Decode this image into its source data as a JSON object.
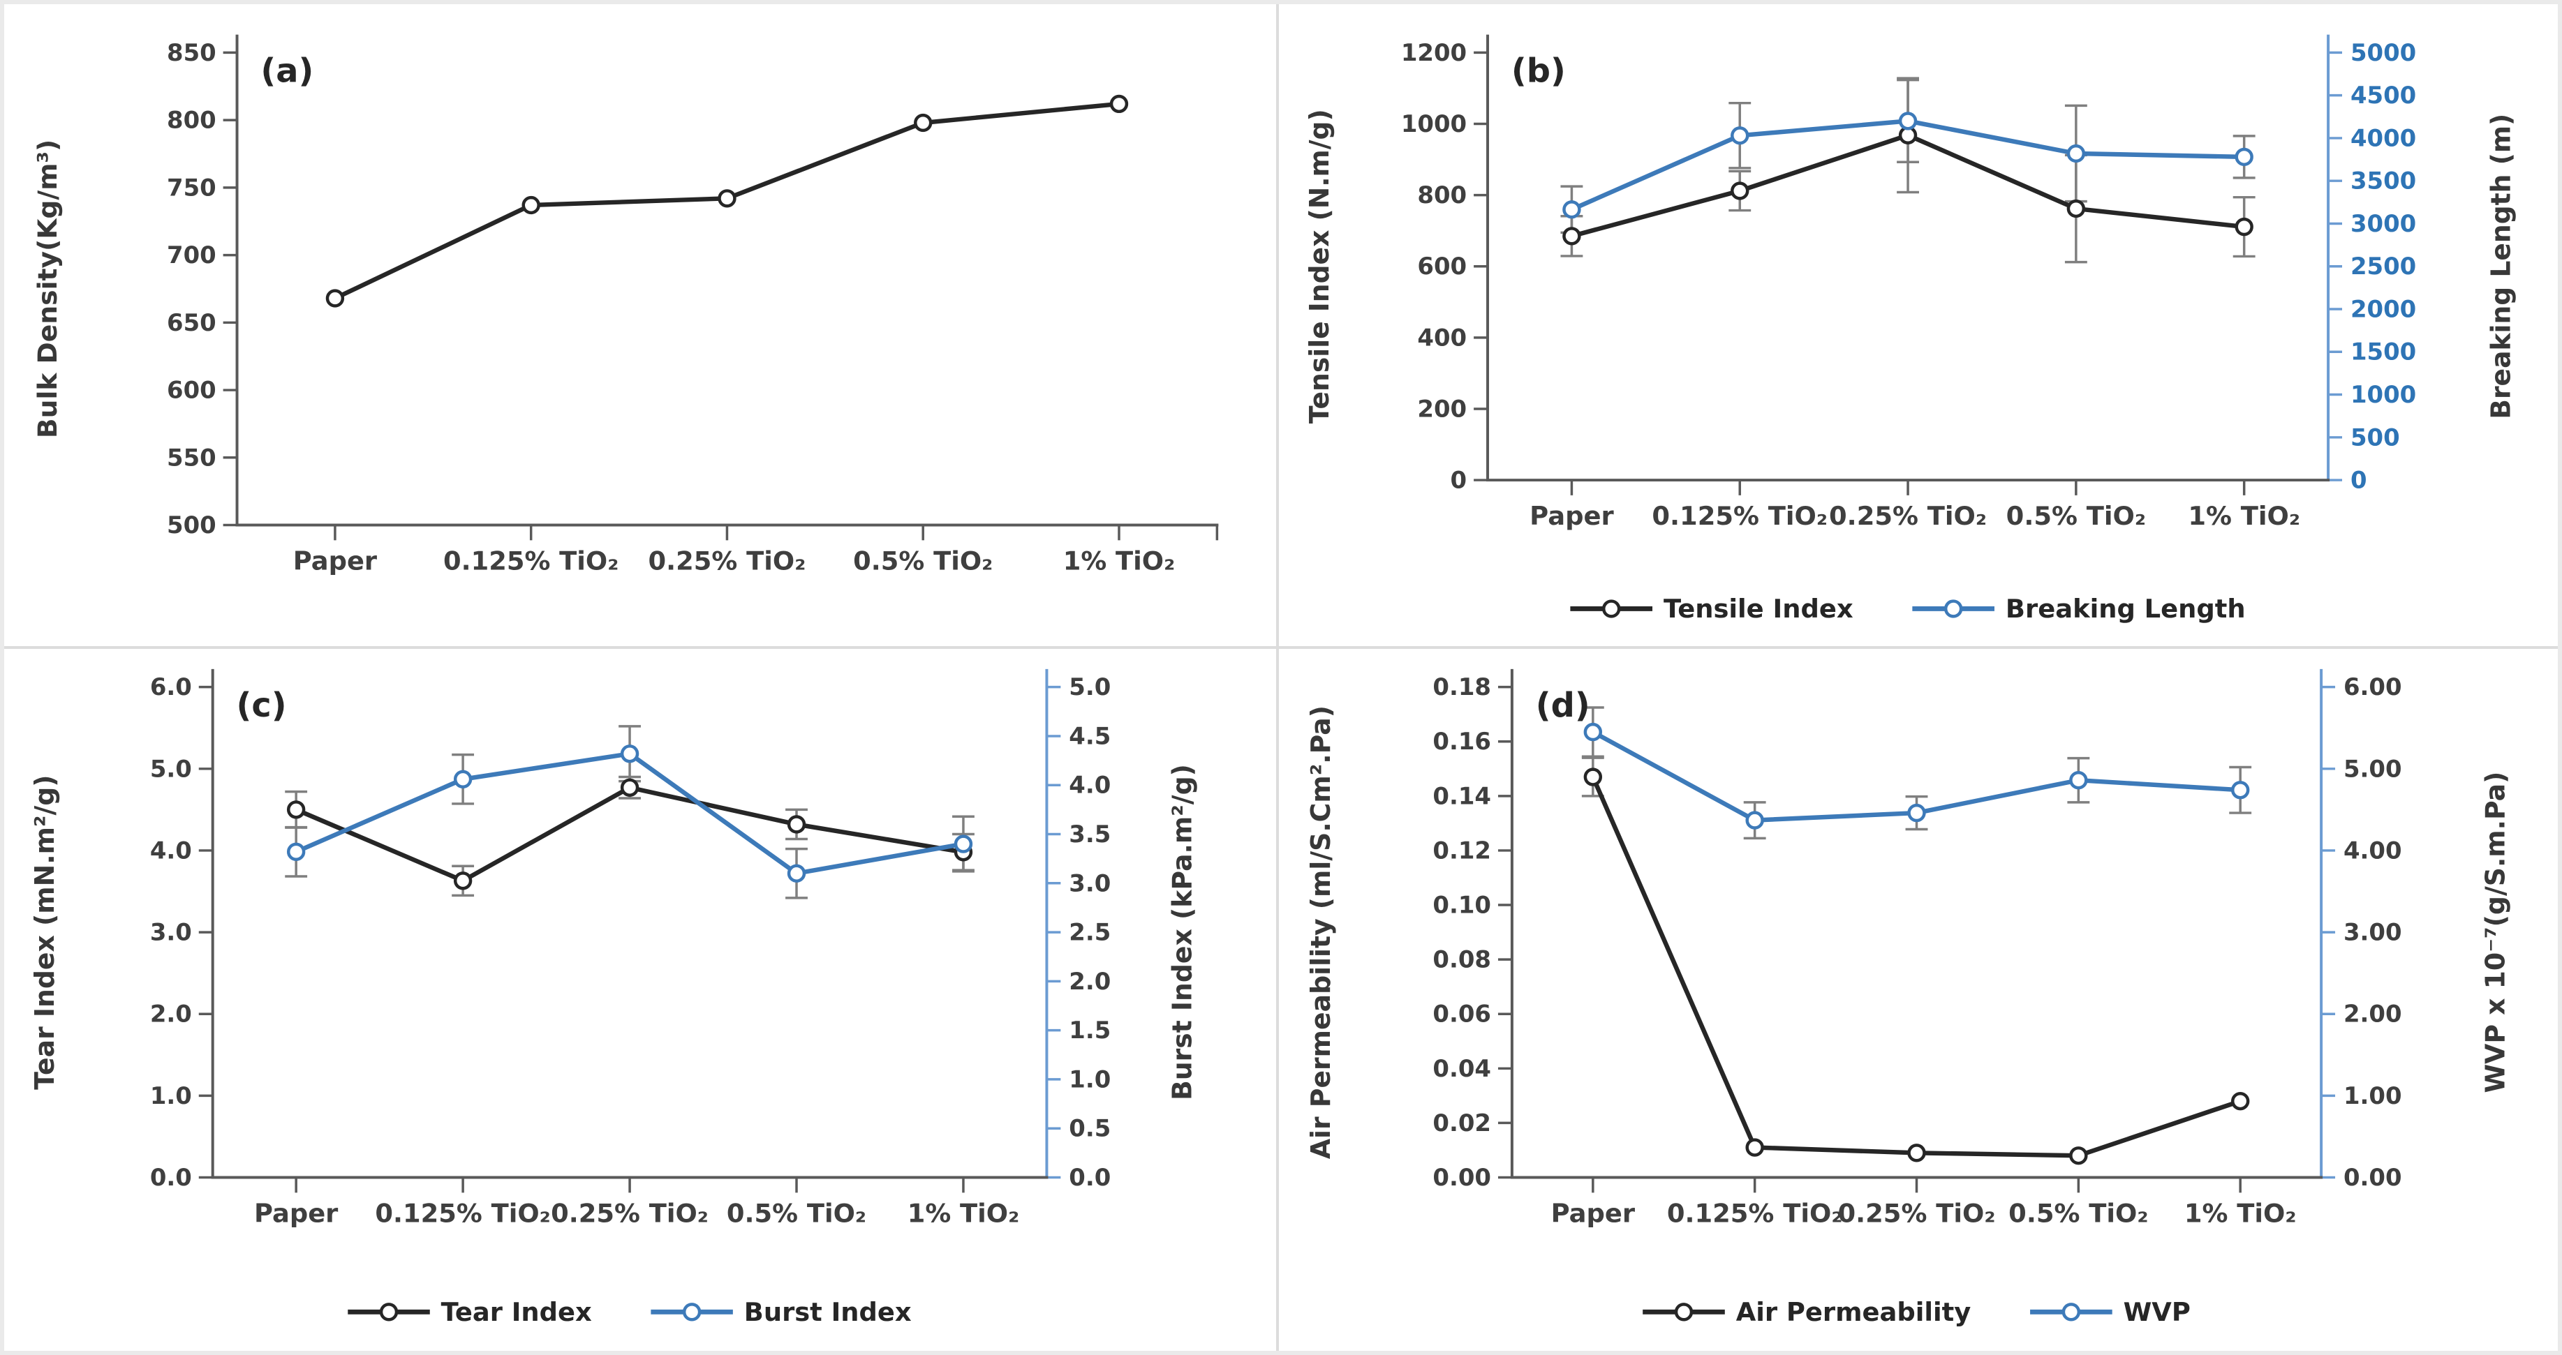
{
  "figure": {
    "type": "scientific-multi-panel-line-figure",
    "panel_letters": [
      "(a)",
      "(b)",
      "(c)",
      "(d)"
    ]
  },
  "colors": {
    "black_series": "#262626",
    "blue_series": "#3d7ab9",
    "blue_axis_line": "#6b9bd2",
    "blue_tick_label": "#2e74b5",
    "error_bar": "#7f7f7f",
    "axis_line": "#595959",
    "tick_label": "#3f3f3f",
    "axis_title": "#383838",
    "marker_fill": "#ffffff"
  },
  "chart_data": [
    {
      "id": "a",
      "type": "line",
      "panel_label": "(a)",
      "categories": [
        "Paper",
        "0.125% TiO₂",
        "0.25% TiO₂",
        "0.5% TiO₂",
        "1% TiO₂"
      ],
      "left_axis": {
        "label": "Bulk Density(Kg/m³)",
        "min": 500,
        "max": 850,
        "step": 50,
        "decimals": 0,
        "tick_label_color": "dark"
      },
      "right_axis": null,
      "legend": false,
      "series": [
        {
          "name": "Bulk Density",
          "legend_label": null,
          "axis": "left",
          "color": "black",
          "values": [
            668,
            737,
            742,
            798,
            812
          ],
          "errors": [
            0,
            0,
            0,
            0,
            0
          ]
        }
      ]
    },
    {
      "id": "b",
      "type": "line",
      "panel_label": "(b)",
      "categories": [
        "Paper",
        "0.125% TiO₂",
        "0.25% TiO₂",
        "0.5% TiO₂",
        "1% TiO₂"
      ],
      "left_axis": {
        "label": "Tensile Index (N.m/g)",
        "min": 0,
        "max": 1200,
        "step": 200,
        "decimals": 0,
        "tick_label_color": "dark"
      },
      "right_axis": {
        "label": "Breaking Length (m)",
        "min": 0,
        "max": 5000,
        "step": 500,
        "decimals": 0,
        "tick_label_color": "blue"
      },
      "legend": true,
      "series": [
        {
          "name": "Tensile Index",
          "legend_label": "Tensile Index",
          "axis": "left",
          "color": "black",
          "values": [
            685,
            812,
            968,
            762,
            711
          ],
          "errors": [
            56,
            55,
            160,
            150,
            83
          ]
        },
        {
          "name": "Breaking Length",
          "legend_label": "Breaking Length",
          "axis": "right",
          "color": "blue",
          "values": [
            3165,
            4030,
            4200,
            3820,
            3780
          ],
          "errors": [
            270,
            380,
            480,
            560,
            245
          ]
        }
      ]
    },
    {
      "id": "c",
      "type": "line",
      "panel_label": "(c)",
      "categories": [
        "Paper",
        "0.125% TiO₂",
        "0.25% TiO₂",
        "0.5% TiO₂",
        "1% TiO₂"
      ],
      "left_axis": {
        "label": "Tear Index (mN.m²/g)",
        "min": 0,
        "max": 6,
        "step": 1,
        "decimals": 1,
        "tick_label_color": "dark"
      },
      "right_axis": {
        "label": "Burst Index (kPa.m²/g)",
        "min": 0,
        "max": 5,
        "step": 0.5,
        "decimals": 1,
        "tick_label_color": "dark"
      },
      "legend": true,
      "series": [
        {
          "name": "Tear Index",
          "legend_label": "Tear Index",
          "axis": "left",
          "color": "black",
          "values": [
            4.5,
            3.63,
            4.77,
            4.32,
            3.98
          ],
          "errors": [
            0.22,
            0.18,
            0.13,
            0.18,
            0.22
          ]
        },
        {
          "name": "Burst Index",
          "legend_label": "Burst Index",
          "axis": "right",
          "color": "blue",
          "values": [
            3.32,
            4.06,
            4.32,
            3.1,
            3.4
          ],
          "errors": [
            0.25,
            0.25,
            0.28,
            0.25,
            0.28
          ]
        }
      ]
    },
    {
      "id": "d",
      "type": "line",
      "panel_label": "(d)",
      "categories": [
        "Paper",
        "0.125% TiO₂",
        "0.25% TiO₂",
        "0.5% TiO₂",
        "1% TiO₂"
      ],
      "left_axis": {
        "label": "Air Permeability (ml/S.Cm².Pa)",
        "min": 0,
        "max": 0.18,
        "step": 0.02,
        "decimals": 2,
        "tick_label_color": "dark"
      },
      "right_axis": {
        "label": "WVP  x 10⁻⁷(g/S.m.Pa)",
        "min": 0,
        "max": 6,
        "step": 1,
        "decimals": 2,
        "tick_label_color": "dark"
      },
      "legend": true,
      "series": [
        {
          "name": "Air Permeability",
          "legend_label": "Air Permeability",
          "axis": "left",
          "color": "black",
          "values": [
            0.147,
            0.011,
            0.009,
            0.008,
            0.028
          ],
          "errors": [
            0.007,
            0,
            0,
            0,
            0
          ]
        },
        {
          "name": "WVP",
          "legend_label": "WVP",
          "axis": "right",
          "color": "blue",
          "values": [
            5.45,
            4.37,
            4.46,
            4.86,
            4.74
          ],
          "errors": [
            0.3,
            0.22,
            0.2,
            0.27,
            0.28
          ]
        }
      ]
    }
  ]
}
